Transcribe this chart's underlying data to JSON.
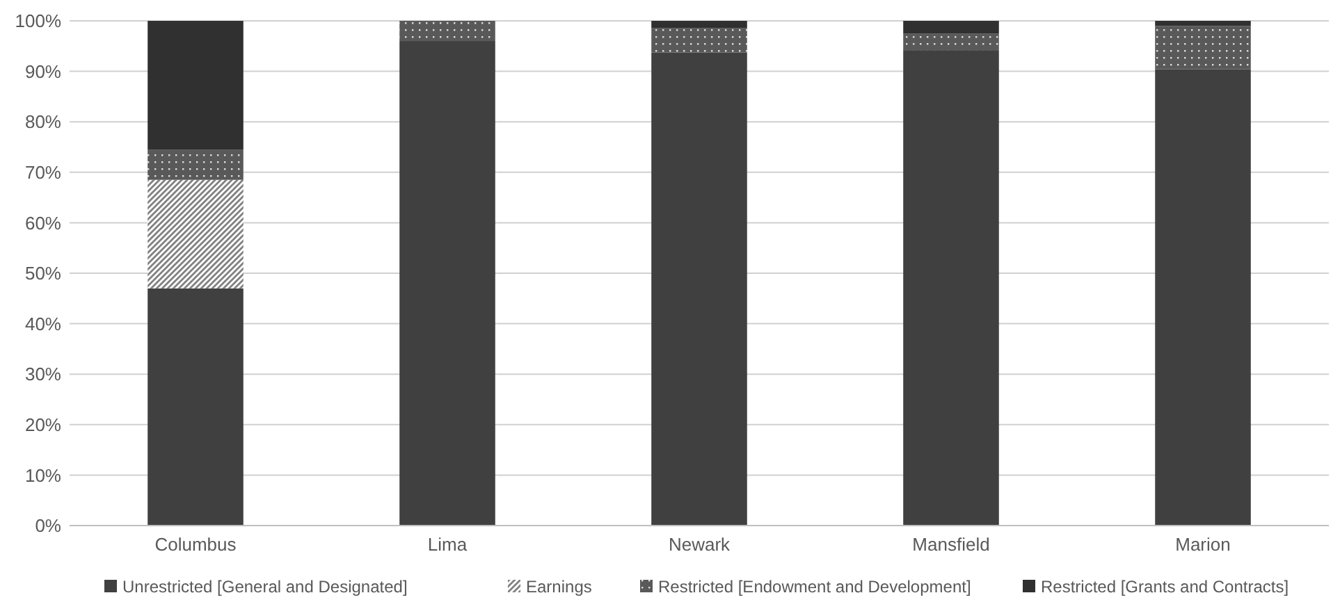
{
  "chart_data": {
    "type": "bar",
    "stacked": true,
    "categories": [
      "Columbus",
      "Lima",
      "Newark",
      "Mansfield",
      "Marion"
    ],
    "series": [
      {
        "name": "Unrestricted [General and Designated]",
        "color": "#404040",
        "values": [
          47,
          96,
          93.7,
          94.2,
          90.4
        ]
      },
      {
        "name": "Earnings",
        "color": "#808080",
        "values": [
          21.5,
          0,
          0,
          0,
          0
        ]
      },
      {
        "name": "Restricted [Endowment and Development]",
        "color": "#595959",
        "values": [
          6,
          4,
          4.9,
          3.3,
          8.6
        ]
      },
      {
        "name": "Restricted [Grants and Contracts]",
        "color": "#303030",
        "values": [
          25.5,
          0,
          1.4,
          2.5,
          1
        ]
      }
    ],
    "ylim": [
      0,
      100
    ],
    "yticks": [
      {
        "value": 0,
        "label": "0%"
      },
      {
        "value": 10,
        "label": "10%"
      },
      {
        "value": 20,
        "label": "20%"
      },
      {
        "value": 30,
        "label": "30%"
      },
      {
        "value": 40,
        "label": "40%"
      },
      {
        "value": 50,
        "label": "50%"
      },
      {
        "value": 60,
        "label": "60%"
      },
      {
        "value": 70,
        "label": "70%"
      },
      {
        "value": 80,
        "label": "80%"
      },
      {
        "value": 90,
        "label": "90%"
      },
      {
        "value": 100,
        "label": "100%"
      }
    ],
    "grid": "y",
    "legend": "bottom"
  }
}
